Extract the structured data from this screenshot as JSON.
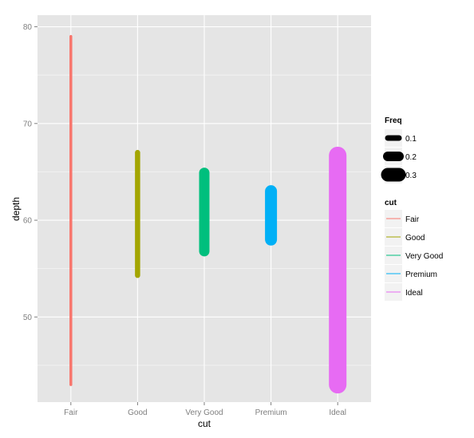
{
  "chart_data": {
    "type": "line",
    "xlabel": "cut",
    "ylabel": "depth",
    "categories": [
      "Fair",
      "Good",
      "Very Good",
      "Premium",
      "Ideal"
    ],
    "colors": [
      "#F8766D",
      "#A3A500",
      "#00BF7D",
      "#00B0F6",
      "#E76BF3"
    ],
    "ylim": [
      41.2,
      81.2
    ],
    "yticks": [
      50,
      60,
      70,
      80
    ],
    "yticks_labels": [
      "50",
      "60",
      "70",
      "80"
    ],
    "grid": true,
    "segments": [
      {
        "cut": "Fair",
        "ymin": 43.0,
        "ymax": 79.0,
        "freq": 0.03
      },
      {
        "cut": "Good",
        "ymin": 54.3,
        "ymax": 67.0,
        "freq": 0.09
      },
      {
        "cut": "Very Good",
        "ymin": 56.8,
        "ymax": 64.9,
        "freq": 0.22
      },
      {
        "cut": "Premium",
        "ymin": 58.0,
        "ymax": 63.0,
        "freq": 0.26
      },
      {
        "cut": "Ideal",
        "ymin": 43.0,
        "ymax": 66.7,
        "freq": 0.4
      }
    ],
    "legend_size": {
      "title": "Freq",
      "labels": [
        "0.1",
        "0.2",
        "0.3"
      ],
      "values": [
        0.1,
        0.2,
        0.3
      ]
    },
    "legend_color": {
      "title": "cut",
      "labels": [
        "Fair",
        "Good",
        "Very Good",
        "Premium",
        "Ideal"
      ]
    },
    "legend_position": "right"
  }
}
